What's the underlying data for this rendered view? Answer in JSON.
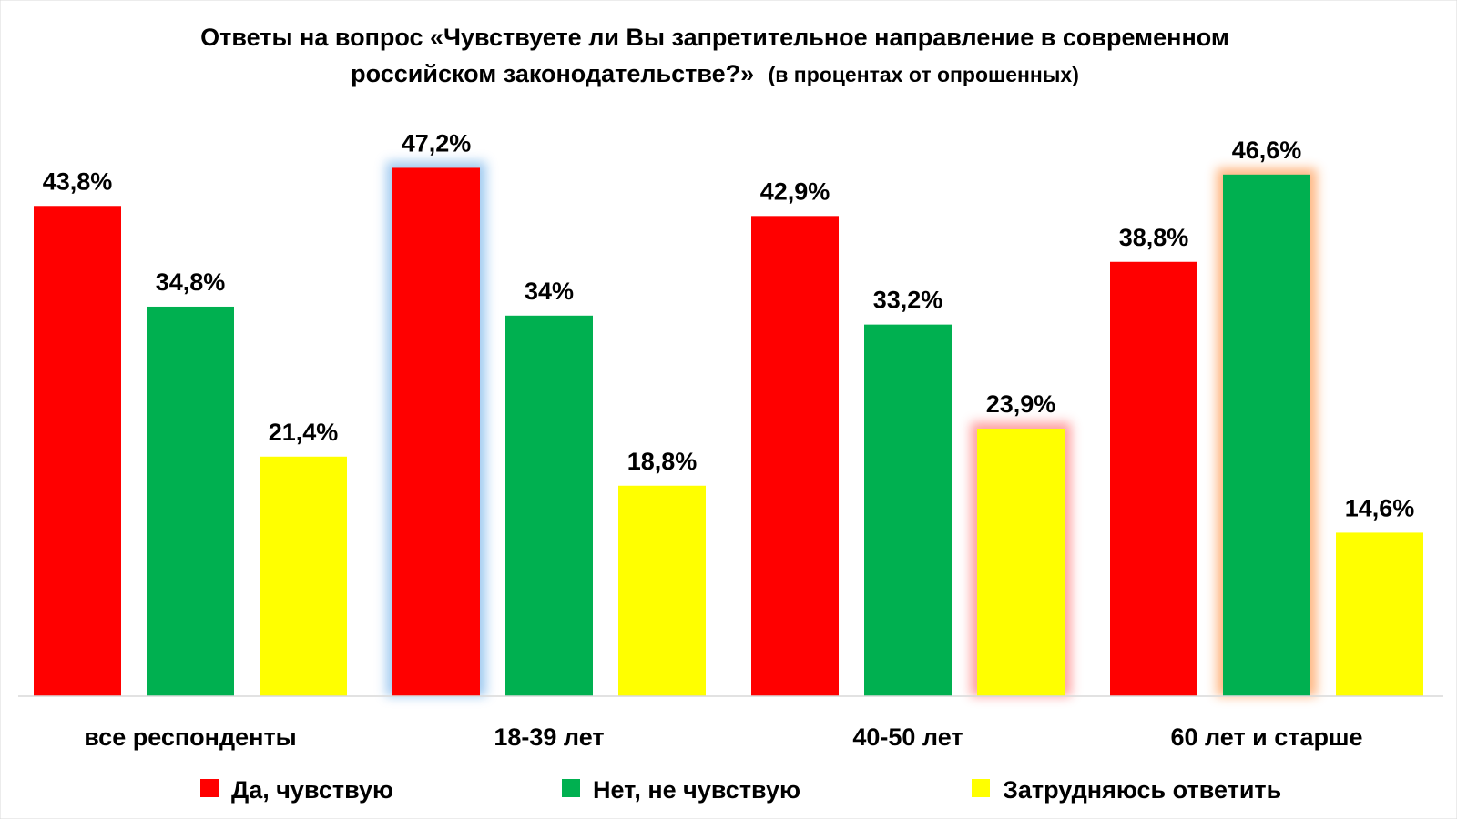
{
  "chart_data": {
    "type": "bar",
    "title_main_line1": "Ответы на вопрос «Чувствуете ли Вы запретительное направление в современном",
    "title_main_line2": "российском законодательстве?»",
    "title_suffix": "(в процентах от опрошенных)",
    "categories": [
      "все респонденты",
      "18-39 лет",
      "40-50 лет",
      "60 лет и старше"
    ],
    "series": [
      {
        "name": "Да, чувствую",
        "color": "#ff0000",
        "values": [
          43.8,
          47.2,
          42.9,
          38.8
        ],
        "labels": [
          "43,8%",
          "47,2%",
          "42,9%",
          "38,8%"
        ]
      },
      {
        "name": "Нет, не чувствую",
        "color": "#00b050",
        "values": [
          34.8,
          34,
          33.2,
          46.6
        ],
        "labels": [
          "34,8%",
          "34%",
          "33,2%",
          "46,6%"
        ]
      },
      {
        "name": "Затрудняюсь ответить",
        "color": "#ffff00",
        "values": [
          21.4,
          18.8,
          23.9,
          14.6
        ],
        "labels": [
          "21,4%",
          "18,8%",
          "23,9%",
          "14,6%"
        ]
      }
    ],
    "ylim": [
      0,
      50
    ],
    "grid": false,
    "legend_position": "bottom",
    "highlight_colors": [
      "#9cc8f0",
      "#ff9a9a",
      "#ffb27a"
    ]
  }
}
